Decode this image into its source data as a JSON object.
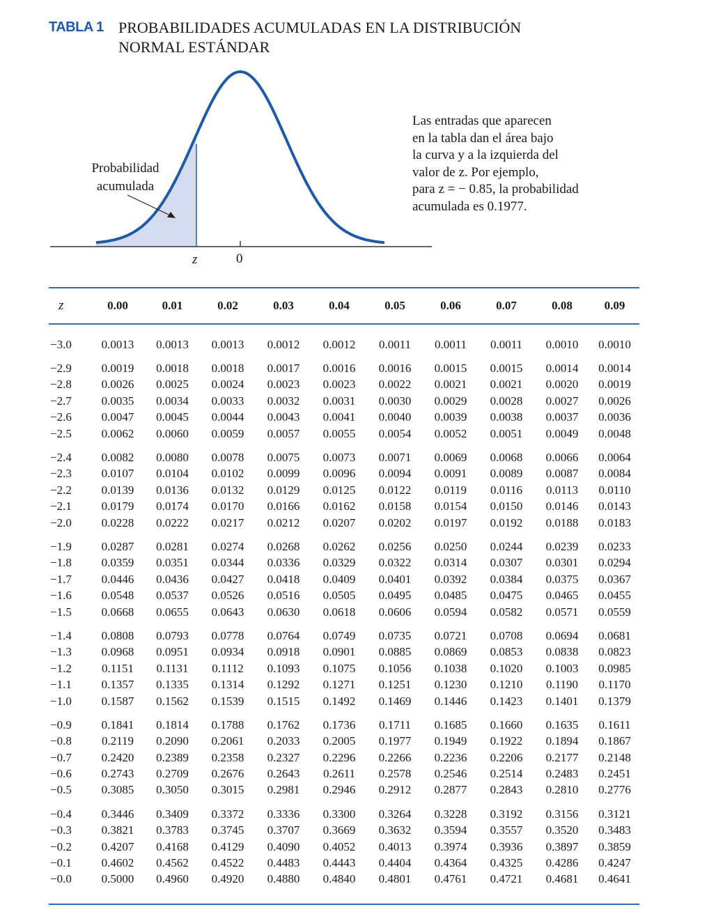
{
  "title": {
    "label": "TABLA 1",
    "line1": "PROBABILIDADES ACUMULADAS EN LA DISTRIBUCIÓN",
    "line2": "NORMAL ESTÁNDAR"
  },
  "figure": {
    "curve_label_line1": "Probabilidad",
    "curve_label_line2": "acumulada",
    "axis_z": "z",
    "axis_zero": "0",
    "caption_lines": [
      "Las entradas que aparecen",
      "en la tabla dan el área bajo",
      "la curva y a la izquierda del",
      "valor de z. Por ejemplo,",
      "para z = − 0.85, la probabilidad",
      "acumulada es 0.1977."
    ],
    "colors": {
      "curve": "#1f5aa6",
      "shade": "#d6dcef",
      "rule": "#2d6fb5"
    }
  },
  "table": {
    "headers": [
      "z",
      "0.00",
      "0.01",
      "0.02",
      "0.03",
      "0.04",
      "0.05",
      "0.06",
      "0.07",
      "0.08",
      "0.09"
    ],
    "rows": [
      [
        "−3.0",
        "0.0013",
        "0.0013",
        "0.0013",
        "0.0012",
        "0.0012",
        "0.0011",
        "0.0011",
        "0.0011",
        "0.0010",
        "0.0010"
      ],
      [
        "−2.9",
        "0.0019",
        "0.0018",
        "0.0018",
        "0.0017",
        "0.0016",
        "0.0016",
        "0.0015",
        "0.0015",
        "0.0014",
        "0.0014"
      ],
      [
        "−2.8",
        "0.0026",
        "0.0025",
        "0.0024",
        "0.0023",
        "0.0023",
        "0.0022",
        "0.0021",
        "0.0021",
        "0.0020",
        "0.0019"
      ],
      [
        "−2.7",
        "0.0035",
        "0.0034",
        "0.0033",
        "0.0032",
        "0.0031",
        "0.0030",
        "0.0029",
        "0.0028",
        "0.0027",
        "0.0026"
      ],
      [
        "−2.6",
        "0.0047",
        "0.0045",
        "0.0044",
        "0.0043",
        "0.0041",
        "0.0040",
        "0.0039",
        "0.0038",
        "0.0037",
        "0.0036"
      ],
      [
        "−2.5",
        "0.0062",
        "0.0060",
        "0.0059",
        "0.0057",
        "0.0055",
        "0.0054",
        "0.0052",
        "0.0051",
        "0.0049",
        "0.0048"
      ],
      [
        "−2.4",
        "0.0082",
        "0.0080",
        "0.0078",
        "0.0075",
        "0.0073",
        "0.0071",
        "0.0069",
        "0.0068",
        "0.0066",
        "0.0064"
      ],
      [
        "−2.3",
        "0.0107",
        "0.0104",
        "0.0102",
        "0.0099",
        "0.0096",
        "0.0094",
        "0.0091",
        "0.0089",
        "0.0087",
        "0.0084"
      ],
      [
        "−2.2",
        "0.0139",
        "0.0136",
        "0.0132",
        "0.0129",
        "0.0125",
        "0.0122",
        "0.0119",
        "0.0116",
        "0.0113",
        "0.0110"
      ],
      [
        "−2.1",
        "0.0179",
        "0.0174",
        "0.0170",
        "0.0166",
        "0.0162",
        "0.0158",
        "0.0154",
        "0.0150",
        "0.0146",
        "0.0143"
      ],
      [
        "−2.0",
        "0.0228",
        "0.0222",
        "0.0217",
        "0.0212",
        "0.0207",
        "0.0202",
        "0.0197",
        "0.0192",
        "0.0188",
        "0.0183"
      ],
      [
        "−1.9",
        "0.0287",
        "0.0281",
        "0.0274",
        "0.0268",
        "0.0262",
        "0.0256",
        "0.0250",
        "0.0244",
        "0.0239",
        "0.0233"
      ],
      [
        "−1.8",
        "0.0359",
        "0.0351",
        "0.0344",
        "0.0336",
        "0.0329",
        "0.0322",
        "0.0314",
        "0.0307",
        "0.0301",
        "0.0294"
      ],
      [
        "−1.7",
        "0.0446",
        "0.0436",
        "0.0427",
        "0.0418",
        "0.0409",
        "0.0401",
        "0.0392",
        "0.0384",
        "0.0375",
        "0.0367"
      ],
      [
        "−1.6",
        "0.0548",
        "0.0537",
        "0.0526",
        "0.0516",
        "0.0505",
        "0.0495",
        "0.0485",
        "0.0475",
        "0.0465",
        "0.0455"
      ],
      [
        "−1.5",
        "0.0668",
        "0.0655",
        "0.0643",
        "0.0630",
        "0.0618",
        "0.0606",
        "0.0594",
        "0.0582",
        "0.0571",
        "0.0559"
      ],
      [
        "−1.4",
        "0.0808",
        "0.0793",
        "0.0778",
        "0.0764",
        "0.0749",
        "0.0735",
        "0.0721",
        "0.0708",
        "0.0694",
        "0.0681"
      ],
      [
        "−1.3",
        "0.0968",
        "0.0951",
        "0.0934",
        "0.0918",
        "0.0901",
        "0.0885",
        "0.0869",
        "0.0853",
        "0.0838",
        "0.0823"
      ],
      [
        "−1.2",
        "0.1151",
        "0.1131",
        "0.1112",
        "0.1093",
        "0.1075",
        "0.1056",
        "0.1038",
        "0.1020",
        "0.1003",
        "0.0985"
      ],
      [
        "−1.1",
        "0.1357",
        "0.1335",
        "0.1314",
        "0.1292",
        "0.1271",
        "0.1251",
        "0.1230",
        "0.1210",
        "0.1190",
        "0.1170"
      ],
      [
        "−1.0",
        "0.1587",
        "0.1562",
        "0.1539",
        "0.1515",
        "0.1492",
        "0.1469",
        "0.1446",
        "0.1423",
        "0.1401",
        "0.1379"
      ],
      [
        "−0.9",
        "0.1841",
        "0.1814",
        "0.1788",
        "0.1762",
        "0.1736",
        "0.1711",
        "0.1685",
        "0.1660",
        "0.1635",
        "0.1611"
      ],
      [
        "−0.8",
        "0.2119",
        "0.2090",
        "0.2061",
        "0.2033",
        "0.2005",
        "0.1977",
        "0.1949",
        "0.1922",
        "0.1894",
        "0.1867"
      ],
      [
        "−0.7",
        "0.2420",
        "0.2389",
        "0.2358",
        "0.2327",
        "0.2296",
        "0.2266",
        "0.2236",
        "0.2206",
        "0.2177",
        "0.2148"
      ],
      [
        "−0.6",
        "0.2743",
        "0.2709",
        "0.2676",
        "0.2643",
        "0.2611",
        "0.2578",
        "0.2546",
        "0.2514",
        "0.2483",
        "0.2451"
      ],
      [
        "−0.5",
        "0.3085",
        "0.3050",
        "0.3015",
        "0.2981",
        "0.2946",
        "0.2912",
        "0.2877",
        "0.2843",
        "0.2810",
        "0.2776"
      ],
      [
        "−0.4",
        "0.3446",
        "0.3409",
        "0.3372",
        "0.3336",
        "0.3300",
        "0.3264",
        "0.3228",
        "0.3192",
        "0.3156",
        "0.3121"
      ],
      [
        "−0.3",
        "0.3821",
        "0.3783",
        "0.3745",
        "0.3707",
        "0.3669",
        "0.3632",
        "0.3594",
        "0.3557",
        "0.3520",
        "0.3483"
      ],
      [
        "−0.2",
        "0.4207",
        "0.4168",
        "0.4129",
        "0.4090",
        "0.4052",
        "0.4013",
        "0.3974",
        "0.3936",
        "0.3897",
        "0.3859"
      ],
      [
        "−0.1",
        "0.4602",
        "0.4562",
        "0.4522",
        "0.4483",
        "0.4443",
        "0.4404",
        "0.4364",
        "0.4325",
        "0.4286",
        "0.4247"
      ],
      [
        "−0.0",
        "0.5000",
        "0.4960",
        "0.4920",
        "0.4880",
        "0.4840",
        "0.4801",
        "0.4761",
        "0.4721",
        "0.4681",
        "0.4641"
      ]
    ]
  }
}
